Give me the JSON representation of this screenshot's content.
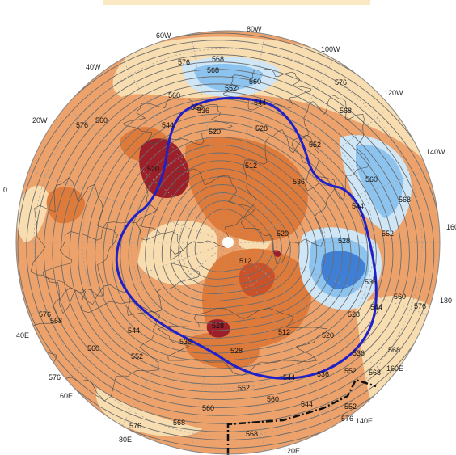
{
  "map": {
    "projection": "north polar stereographic",
    "top_banner_color": "#fbe9c4",
    "colors": {
      "outside_background": "#ffffff",
      "warm_light": "#f7ddb0",
      "warm_medium": "#eca26a",
      "warm_strong": "#de7a3a",
      "warm_deep": "#c9522a",
      "warm_extreme": "#9c1f2a",
      "cold_light": "#cfe6f7",
      "cold_medium": "#8dc4ef",
      "cold_strong": "#5a9de0",
      "cold_deep": "#3f7fd6",
      "contour_line": "#6d6d6d",
      "highlight_contour": "#2020c8",
      "grid_line": "#9a9a9a",
      "coastline": "#4a4a4a",
      "dashed_boundary": "#111111"
    },
    "longitude_labels": [
      "80W",
      "100W",
      "120W",
      "140W",
      "160W",
      "180",
      "160E",
      "140E",
      "120E",
      "80E",
      "60E",
      "40E",
      "0",
      "20W",
      "40W",
      "60W"
    ],
    "highlighted_contour_value": "536",
    "contour_labels": [
      "576",
      "568",
      "560",
      "552",
      "576",
      "568",
      "576",
      "560",
      "552",
      "544",
      "536",
      "544",
      "528",
      "520",
      "512",
      "552",
      "536",
      "560",
      "544",
      "552",
      "528",
      "536",
      "544",
      "560",
      "576",
      "568",
      "528",
      "520",
      "512",
      "520",
      "528",
      "536",
      "544",
      "552",
      "560",
      "568",
      "576",
      "560",
      "568",
      "576",
      "568",
      "560",
      "552",
      "544",
      "536",
      "528",
      "520",
      "512",
      "536",
      "544",
      "552",
      "560",
      "568",
      "576",
      "568",
      "576",
      "568",
      "552"
    ]
  }
}
